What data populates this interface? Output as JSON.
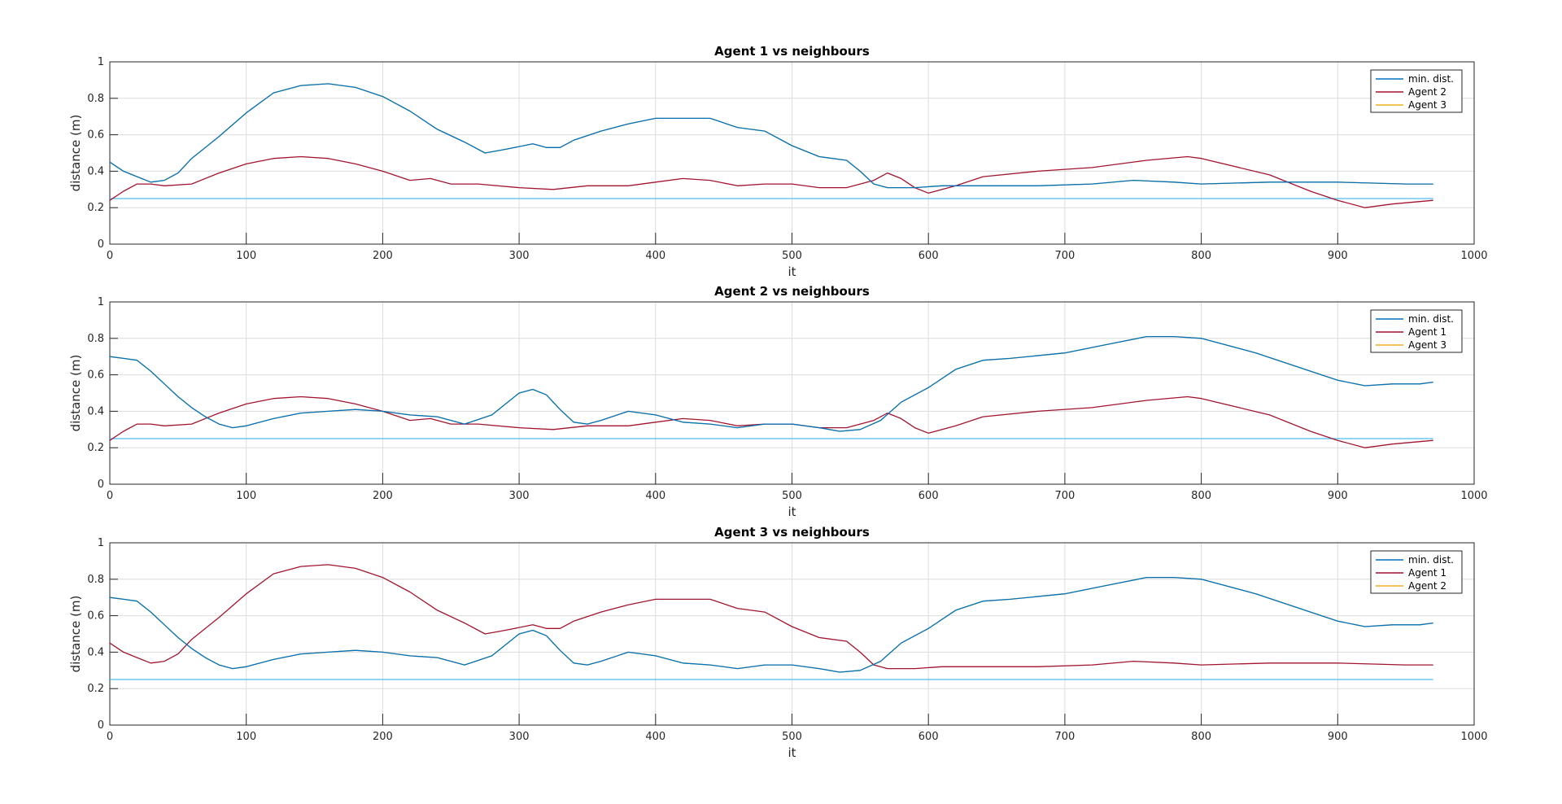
{
  "colors": {
    "min_dist": "#0072BD",
    "agent_a": "#A2142F",
    "agent_b": "#EDB120",
    "threshold": "#4DBEEE",
    "grid": "#dcdcdc",
    "axis": "#262626"
  },
  "chart_data": [
    {
      "type": "line",
      "title": "Agent 1 vs neighbours",
      "xlabel": "it",
      "ylabel": "distance (m)",
      "xlim": [
        0,
        1000
      ],
      "ylim": [
        0,
        1
      ],
      "xticks": [
        "0",
        "100",
        "200",
        "300",
        "400",
        "500",
        "600",
        "700",
        "800",
        "900",
        "1000"
      ],
      "yticks": [
        "0",
        "0.2",
        "0.4",
        "0.6",
        "0.8",
        "1"
      ],
      "grid": true,
      "legend_position": "top-right",
      "threshold": 0.25,
      "series": [
        {
          "name": "min. dist.",
          "color_key": "min_dist",
          "x": [
            0,
            10,
            20,
            30,
            40,
            50,
            60,
            80,
            100,
            120,
            140,
            160,
            180,
            200,
            220,
            240,
            260,
            275,
            290,
            310,
            320,
            330,
            340,
            360,
            380,
            400,
            420,
            440,
            460,
            480,
            500,
            520,
            540,
            550,
            560,
            570,
            590,
            610,
            640,
            680,
            720,
            750,
            780,
            800,
            850,
            900,
            950,
            970
          ],
          "y": [
            0.45,
            0.4,
            0.37,
            0.34,
            0.35,
            0.39,
            0.47,
            0.59,
            0.72,
            0.83,
            0.87,
            0.88,
            0.86,
            0.81,
            0.73,
            0.63,
            0.56,
            0.5,
            0.52,
            0.55,
            0.53,
            0.53,
            0.57,
            0.62,
            0.66,
            0.69,
            0.69,
            0.69,
            0.64,
            0.62,
            0.54,
            0.48,
            0.46,
            0.4,
            0.33,
            0.31,
            0.31,
            0.32,
            0.32,
            0.32,
            0.33,
            0.35,
            0.34,
            0.33,
            0.34,
            0.34,
            0.33,
            0.33
          ]
        },
        {
          "name": "Agent 2",
          "color_key": "agent_a",
          "x": [
            0,
            10,
            20,
            30,
            40,
            60,
            80,
            100,
            120,
            140,
            160,
            180,
            200,
            220,
            235,
            250,
            270,
            300,
            325,
            350,
            380,
            400,
            420,
            440,
            460,
            480,
            500,
            520,
            540,
            560,
            570,
            580,
            590,
            600,
            620,
            640,
            680,
            720,
            760,
            790,
            800,
            850,
            880,
            900,
            920,
            940,
            970
          ],
          "y": [
            0.24,
            0.29,
            0.33,
            0.33,
            0.32,
            0.33,
            0.39,
            0.44,
            0.47,
            0.48,
            0.47,
            0.44,
            0.4,
            0.35,
            0.36,
            0.33,
            0.33,
            0.31,
            0.3,
            0.32,
            0.32,
            0.34,
            0.36,
            0.35,
            0.32,
            0.33,
            0.33,
            0.31,
            0.31,
            0.35,
            0.39,
            0.36,
            0.31,
            0.28,
            0.32,
            0.37,
            0.4,
            0.42,
            0.46,
            0.48,
            0.47,
            0.38,
            0.29,
            0.24,
            0.2,
            0.22,
            0.24
          ]
        },
        {
          "name": "Agent 3",
          "color_key": "agent_b",
          "x": [
            0,
            10,
            20,
            30,
            40,
            50,
            60,
            80,
            100,
            120,
            140,
            160,
            180,
            200,
            220,
            240,
            260,
            275,
            290,
            310,
            320,
            330,
            340,
            360,
            380,
            400,
            420,
            440,
            460,
            480,
            500,
            520,
            540,
            550,
            560,
            570,
            590,
            610,
            640,
            680,
            720,
            750,
            780,
            800,
            850,
            900,
            950,
            970
          ],
          "y": [
            0.45,
            0.4,
            0.37,
            0.34,
            0.35,
            0.39,
            0.47,
            0.59,
            0.72,
            0.83,
            0.87,
            0.88,
            0.86,
            0.81,
            0.73,
            0.63,
            0.56,
            0.5,
            0.52,
            0.55,
            0.53,
            0.53,
            0.57,
            0.62,
            0.66,
            0.69,
            0.69,
            0.69,
            0.64,
            0.62,
            0.54,
            0.48,
            0.46,
            0.4,
            0.33,
            0.31,
            0.31,
            0.32,
            0.32,
            0.32,
            0.33,
            0.35,
            0.34,
            0.33,
            0.34,
            0.34,
            0.33,
            0.33
          ]
        }
      ]
    },
    {
      "type": "line",
      "title": "Agent 2 vs neighbours",
      "xlabel": "it",
      "ylabel": "distance (m)",
      "xlim": [
        0,
        1000
      ],
      "ylim": [
        0,
        1
      ],
      "xticks": [
        "0",
        "100",
        "200",
        "300",
        "400",
        "500",
        "600",
        "700",
        "800",
        "900",
        "1000"
      ],
      "yticks": [
        "0",
        "0.2",
        "0.4",
        "0.6",
        "0.8",
        "1"
      ],
      "grid": true,
      "legend_position": "top-right",
      "threshold": 0.25,
      "series": [
        {
          "name": "min. dist.",
          "color_key": "min_dist",
          "x": [
            0,
            10,
            20,
            30,
            40,
            50,
            60,
            70,
            80,
            90,
            100,
            120,
            140,
            160,
            180,
            200,
            220,
            240,
            260,
            280,
            300,
            310,
            320,
            330,
            340,
            350,
            360,
            380,
            400,
            420,
            440,
            460,
            480,
            500,
            520,
            535,
            550,
            565,
            580,
            600,
            620,
            640,
            660,
            700,
            740,
            760,
            780,
            800,
            840,
            880,
            900,
            920,
            940,
            960,
            970
          ],
          "y": [
            0.7,
            0.69,
            0.68,
            0.62,
            0.55,
            0.48,
            0.42,
            0.37,
            0.33,
            0.31,
            0.32,
            0.36,
            0.39,
            0.4,
            0.41,
            0.4,
            0.38,
            0.37,
            0.33,
            0.38,
            0.5,
            0.52,
            0.49,
            0.41,
            0.34,
            0.33,
            0.35,
            0.4,
            0.38,
            0.34,
            0.33,
            0.31,
            0.33,
            0.33,
            0.31,
            0.29,
            0.3,
            0.35,
            0.45,
            0.53,
            0.63,
            0.68,
            0.69,
            0.72,
            0.78,
            0.81,
            0.81,
            0.8,
            0.72,
            0.62,
            0.57,
            0.54,
            0.55,
            0.55,
            0.56
          ]
        },
        {
          "name": "Agent 1",
          "color_key": "agent_a",
          "x": [
            0,
            10,
            20,
            30,
            40,
            60,
            80,
            100,
            120,
            140,
            160,
            180,
            200,
            220,
            235,
            250,
            270,
            300,
            325,
            350,
            380,
            400,
            420,
            440,
            460,
            480,
            500,
            520,
            540,
            560,
            570,
            580,
            590,
            600,
            620,
            640,
            680,
            720,
            760,
            790,
            800,
            850,
            880,
            900,
            920,
            940,
            970
          ],
          "y": [
            0.24,
            0.29,
            0.33,
            0.33,
            0.32,
            0.33,
            0.39,
            0.44,
            0.47,
            0.48,
            0.47,
            0.44,
            0.4,
            0.35,
            0.36,
            0.33,
            0.33,
            0.31,
            0.3,
            0.32,
            0.32,
            0.34,
            0.36,
            0.35,
            0.32,
            0.33,
            0.33,
            0.31,
            0.31,
            0.35,
            0.39,
            0.36,
            0.31,
            0.28,
            0.32,
            0.37,
            0.4,
            0.42,
            0.46,
            0.48,
            0.47,
            0.38,
            0.29,
            0.24,
            0.2,
            0.22,
            0.24
          ]
        },
        {
          "name": "Agent 3",
          "color_key": "agent_b",
          "x": [
            0,
            10,
            20,
            30,
            40,
            50,
            60,
            70,
            80,
            90,
            100,
            120,
            140,
            160,
            180,
            200,
            220,
            240,
            260,
            280,
            300,
            310,
            320,
            330,
            340,
            350,
            360,
            380,
            400,
            420,
            440,
            460,
            480,
            500,
            520,
            535,
            550,
            565,
            580,
            600,
            620,
            640,
            660,
            700,
            740,
            760,
            780,
            800,
            840,
            880,
            900,
            920,
            940,
            960,
            970
          ],
          "y": [
            0.7,
            0.69,
            0.68,
            0.62,
            0.55,
            0.48,
            0.42,
            0.37,
            0.33,
            0.31,
            0.32,
            0.36,
            0.39,
            0.4,
            0.41,
            0.4,
            0.38,
            0.37,
            0.33,
            0.38,
            0.5,
            0.52,
            0.49,
            0.41,
            0.34,
            0.33,
            0.35,
            0.4,
            0.38,
            0.34,
            0.33,
            0.31,
            0.33,
            0.33,
            0.31,
            0.29,
            0.3,
            0.35,
            0.45,
            0.53,
            0.63,
            0.68,
            0.69,
            0.72,
            0.78,
            0.81,
            0.81,
            0.8,
            0.72,
            0.62,
            0.57,
            0.54,
            0.55,
            0.55,
            0.56
          ]
        }
      ]
    },
    {
      "type": "line",
      "title": "Agent 3 vs neighbours",
      "xlabel": "it",
      "ylabel": "distance (m)",
      "xlim": [
        0,
        1000
      ],
      "ylim": [
        0,
        1
      ],
      "xticks": [
        "0",
        "100",
        "200",
        "300",
        "400",
        "500",
        "600",
        "700",
        "800",
        "900",
        "1000"
      ],
      "yticks": [
        "0",
        "0.2",
        "0.4",
        "0.6",
        "0.8",
        "1"
      ],
      "grid": true,
      "legend_position": "top-right",
      "threshold": 0.25,
      "series": [
        {
          "name": "min. dist.",
          "color_key": "min_dist",
          "x": [
            0,
            10,
            20,
            30,
            40,
            50,
            60,
            70,
            80,
            90,
            100,
            120,
            140,
            160,
            180,
            200,
            220,
            240,
            260,
            280,
            300,
            310,
            320,
            330,
            340,
            350,
            360,
            380,
            400,
            420,
            440,
            460,
            480,
            500,
            520,
            535,
            550,
            565,
            580,
            600,
            620,
            640,
            660,
            700,
            740,
            760,
            780,
            800,
            840,
            880,
            900,
            920,
            940,
            960,
            970
          ],
          "y": [
            0.7,
            0.69,
            0.68,
            0.62,
            0.55,
            0.48,
            0.42,
            0.37,
            0.33,
            0.31,
            0.32,
            0.36,
            0.39,
            0.4,
            0.41,
            0.4,
            0.38,
            0.37,
            0.33,
            0.38,
            0.5,
            0.52,
            0.49,
            0.41,
            0.34,
            0.33,
            0.35,
            0.4,
            0.38,
            0.34,
            0.33,
            0.31,
            0.33,
            0.33,
            0.31,
            0.29,
            0.3,
            0.35,
            0.45,
            0.53,
            0.63,
            0.68,
            0.69,
            0.72,
            0.78,
            0.81,
            0.81,
            0.8,
            0.72,
            0.62,
            0.57,
            0.54,
            0.55,
            0.55,
            0.56
          ]
        },
        {
          "name": "Agent 1",
          "color_key": "agent_a",
          "x": [
            0,
            10,
            20,
            30,
            40,
            50,
            60,
            80,
            100,
            120,
            140,
            160,
            180,
            200,
            220,
            240,
            260,
            275,
            290,
            310,
            320,
            330,
            340,
            360,
            380,
            400,
            420,
            440,
            460,
            480,
            500,
            520,
            540,
            550,
            560,
            570,
            590,
            610,
            640,
            680,
            720,
            750,
            780,
            800,
            850,
            900,
            950,
            970
          ],
          "y": [
            0.45,
            0.4,
            0.37,
            0.34,
            0.35,
            0.39,
            0.47,
            0.59,
            0.72,
            0.83,
            0.87,
            0.88,
            0.86,
            0.81,
            0.73,
            0.63,
            0.56,
            0.5,
            0.52,
            0.55,
            0.53,
            0.53,
            0.57,
            0.62,
            0.66,
            0.69,
            0.69,
            0.69,
            0.64,
            0.62,
            0.54,
            0.48,
            0.46,
            0.4,
            0.33,
            0.31,
            0.31,
            0.32,
            0.32,
            0.32,
            0.33,
            0.35,
            0.34,
            0.33,
            0.34,
            0.34,
            0.33,
            0.33
          ]
        },
        {
          "name": "Agent 2",
          "color_key": "agent_b",
          "x": [
            0,
            10,
            20,
            30,
            40,
            50,
            60,
            70,
            80,
            90,
            100,
            120,
            140,
            160,
            180,
            200,
            220,
            240,
            260,
            280,
            300,
            310,
            320,
            330,
            340,
            350,
            360,
            380,
            400,
            420,
            440,
            460,
            480,
            500,
            520,
            535,
            550,
            565,
            580,
            600,
            620,
            640,
            660,
            700,
            740,
            760,
            780,
            800,
            840,
            880,
            900,
            920,
            940,
            960,
            970
          ],
          "y": [
            0.7,
            0.69,
            0.68,
            0.62,
            0.55,
            0.48,
            0.42,
            0.37,
            0.33,
            0.31,
            0.32,
            0.36,
            0.39,
            0.4,
            0.41,
            0.4,
            0.38,
            0.37,
            0.33,
            0.38,
            0.5,
            0.52,
            0.49,
            0.41,
            0.34,
            0.33,
            0.35,
            0.4,
            0.38,
            0.34,
            0.33,
            0.31,
            0.33,
            0.33,
            0.31,
            0.29,
            0.3,
            0.35,
            0.45,
            0.53,
            0.63,
            0.68,
            0.69,
            0.72,
            0.78,
            0.81,
            0.81,
            0.8,
            0.72,
            0.62,
            0.57,
            0.54,
            0.55,
            0.55,
            0.56
          ]
        }
      ]
    }
  ]
}
